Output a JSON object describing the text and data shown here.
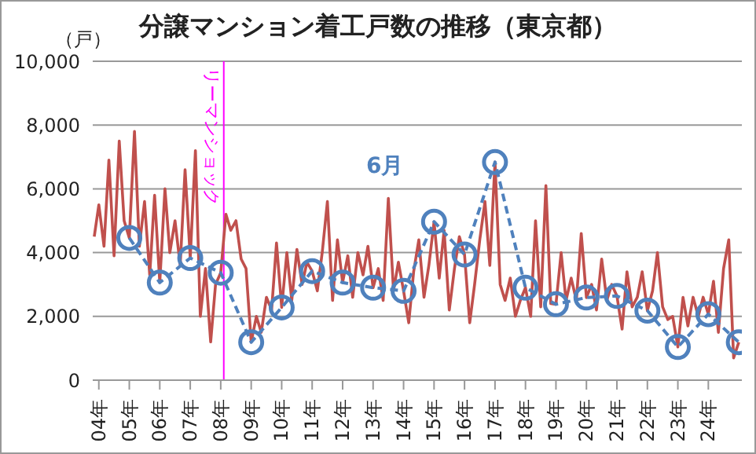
{
  "chart_data": {
    "type": "line",
    "title": "分譲マンション着工戸数の推移（東京都）",
    "ylabel": "（戸）",
    "annotations": [
      "6月"
    ],
    "xlim": [
      3.8,
      25.1
    ],
    "xticks": [
      {
        "value": 4,
        "label": "04年"
      },
      {
        "value": 5,
        "label": "05年"
      },
      {
        "value": 6,
        "label": "06年"
      },
      {
        "value": 7,
        "label": "07年"
      },
      {
        "value": 8,
        "label": "08年"
      },
      {
        "value": 9,
        "label": "09年"
      },
      {
        "value": 10,
        "label": "10年"
      },
      {
        "value": 11,
        "label": "11年"
      },
      {
        "value": 12,
        "label": "12年"
      },
      {
        "value": 13,
        "label": "13年"
      },
      {
        "value": 14,
        "label": "14年"
      },
      {
        "value": 15,
        "label": "15年"
      },
      {
        "value": 16,
        "label": "16年"
      },
      {
        "value": 17,
        "label": "17年"
      },
      {
        "value": 18,
        "label": "18年"
      },
      {
        "value": 19,
        "label": "19年"
      },
      {
        "value": 20,
        "label": "20年"
      },
      {
        "value": 21,
        "label": "21年"
      },
      {
        "value": 22,
        "label": "22年"
      },
      {
        "value": 23,
        "label": "23年"
      },
      {
        "value": 24,
        "label": "24年"
      }
    ],
    "ylim": [
      0,
      10000
    ],
    "yticks": [
      0,
      {
        "value": 2000,
        "label": "2,000"
      },
      {
        "value": 4000,
        "label": "4,000"
      },
      {
        "value": 6000,
        "label": "6,000"
      },
      {
        "value": 8000,
        "label": "8,000"
      },
      {
        "value": 10000,
        "label": "10,000"
      }
    ],
    "grid": "y",
    "legend": false,
    "ref_lines": [
      {
        "axis": "x",
        "value": 8.1,
        "label": "リーマンショック",
        "color": "#ff00ff"
      }
    ],
    "series": [
      {
        "color": "#c0504d",
        "marker": "none",
        "line_style": "solid",
        "x": [
          3.85,
          4,
          4.17,
          4.33,
          4.5,
          4.67,
          4.83,
          5,
          5.17,
          5.33,
          5.5,
          5.67,
          5.83,
          6,
          6.17,
          6.33,
          6.5,
          6.67,
          6.83,
          7,
          7.17,
          7.33,
          7.5,
          7.67,
          7.83,
          8,
          8.17,
          8.33,
          8.5,
          8.67,
          8.83,
          9,
          9.17,
          9.33,
          9.5,
          9.67,
          9.83,
          10,
          10.17,
          10.33,
          10.5,
          10.67,
          10.83,
          11,
          11.17,
          11.33,
          11.5,
          11.67,
          11.83,
          12,
          12.17,
          12.33,
          12.5,
          12.67,
          12.83,
          13,
          13.17,
          13.33,
          13.5,
          13.67,
          13.83,
          14,
          14.17,
          14.33,
          14.5,
          14.67,
          14.83,
          15,
          15.17,
          15.33,
          15.5,
          15.67,
          15.83,
          16,
          16.17,
          16.33,
          16.5,
          16.67,
          16.83,
          17,
          17.17,
          17.33,
          17.5,
          17.67,
          17.83,
          18,
          18.17,
          18.33,
          18.5,
          18.67,
          18.83,
          19,
          19.17,
          19.33,
          19.5,
          19.67,
          19.83,
          20,
          20.17,
          20.33,
          20.5,
          20.67,
          20.83,
          21,
          21.17,
          21.33,
          21.5,
          21.67,
          21.83,
          22,
          22.17,
          22.33,
          22.5,
          22.67,
          22.83,
          23,
          23.17,
          23.33,
          23.5,
          23.67,
          23.83,
          24,
          24.17,
          24.33,
          24.5,
          24.67,
          24.83,
          25
        ],
        "values": [
          4500,
          5500,
          4200,
          6900,
          3900,
          7500,
          5000,
          4460,
          7800,
          4200,
          5600,
          3300,
          5800,
          3060,
          6000,
          4000,
          5000,
          3600,
          6600,
          3830,
          7200,
          2000,
          3500,
          1200,
          3000,
          3370,
          5200,
          4700,
          5000,
          3800,
          3500,
          1190,
          2000,
          1500,
          2600,
          2200,
          4300,
          2280,
          4000,
          2500,
          4100,
          3000,
          3700,
          3420,
          2800,
          4000,
          5600,
          2500,
          4400,
          3060,
          3900,
          2600,
          4000,
          3300,
          4200,
          2900,
          3500,
          2500,
          5700,
          2800,
          3700,
          2800,
          1800,
          3400,
          4400,
          2600,
          3600,
          4970,
          3200,
          4700,
          2200,
          3500,
          4500,
          3940,
          1800,
          3000,
          4400,
          5600,
          3600,
          6840,
          3000,
          2500,
          3200,
          2000,
          2500,
          2900,
          2000,
          5000,
          2300,
          6100,
          2400,
          2380,
          4000,
          2500,
          3200,
          2500,
          4600,
          2590,
          3000,
          2200,
          3800,
          2500,
          3000,
          2640,
          1600,
          3400,
          2300,
          2600,
          3400,
          2180,
          2800,
          4000,
          2300,
          1900,
          2000,
          1040,
          2600,
          1700,
          2600,
          2000,
          2600,
          2070,
          3100,
          1500,
          3500,
          4400,
          700,
          1190
        ]
      },
      {
        "color": "#4f81bd",
        "marker": "circle",
        "line_style": "dashed",
        "x": [
          5,
          6,
          7,
          8,
          9,
          10,
          11,
          12,
          13,
          14,
          15,
          16,
          17,
          18,
          19,
          20,
          21,
          22,
          23,
          24,
          25
        ],
        "values": [
          4460,
          3060,
          3830,
          3370,
          1190,
          2280,
          3420,
          3060,
          2900,
          2800,
          4970,
          3940,
          6840,
          2900,
          2380,
          2590,
          2640,
          2180,
          1040,
          2070,
          1190
        ]
      }
    ]
  }
}
